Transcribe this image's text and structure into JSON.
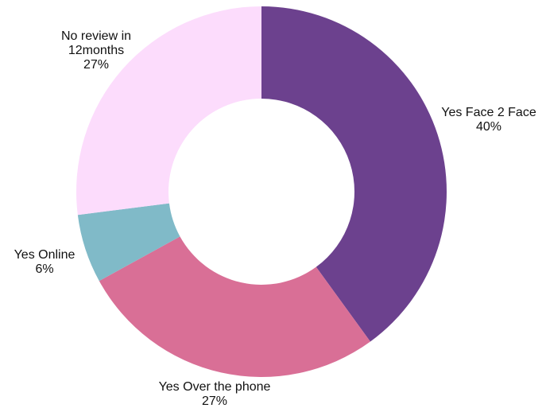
{
  "chart_data": {
    "type": "pie",
    "donut": true,
    "title": "",
    "legend": "none",
    "slices": [
      {
        "label": "Yes Face 2 Face",
        "value": 40,
        "value_label": "40%",
        "color": "#6c418e"
      },
      {
        "label": "Yes Over the phone",
        "value": 27,
        "value_label": "27%",
        "color": "#d96f96"
      },
      {
        "label": "Yes Online",
        "value": 6,
        "value_label": "6%",
        "color": "#80bac8"
      },
      {
        "label": "No review in 12months",
        "value": 27,
        "value_label": "27%",
        "color": "#fcdcfc"
      }
    ]
  }
}
